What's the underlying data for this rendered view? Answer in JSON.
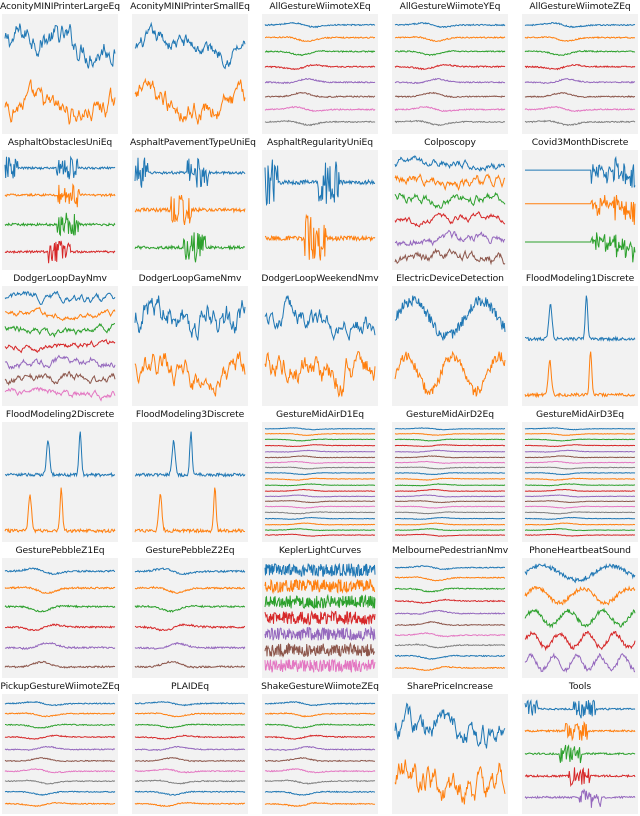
{
  "figure": {
    "background_panel_color": "#f2f2f2",
    "series_palette": [
      "#1f77b4",
      "#ff7f0e",
      "#2ca02c",
      "#d62728",
      "#9467bd",
      "#8c564b",
      "#e377c2",
      "#7f7f7f"
    ]
  },
  "chart_data": [
    {
      "type": "line",
      "title": "AconityMINIPrinterLargeEq",
      "n_series": 2,
      "style": "noisy",
      "spike": true
    },
    {
      "type": "line",
      "title": "AconityMINIPrinterSmallEq",
      "n_series": 2,
      "style": "noisy",
      "spike": true
    },
    {
      "type": "line",
      "title": "AllGestureWiimoteXEq",
      "n_series": 8,
      "style": "flat"
    },
    {
      "type": "line",
      "title": "AllGestureWiimoteYEq",
      "n_series": 8,
      "style": "flat"
    },
    {
      "type": "line",
      "title": "AllGestureWiimoteZEq",
      "n_series": 8,
      "style": "flat"
    },
    {
      "type": "line",
      "title": "AsphaltObstaclesUniEq",
      "n_series": 4,
      "style": "burst"
    },
    {
      "type": "line",
      "title": "AsphaltPavementTypeUniEq",
      "n_series": 3,
      "style": "burst"
    },
    {
      "type": "line",
      "title": "AsphaltRegularityUniEq",
      "n_series": 2,
      "style": "burst"
    },
    {
      "type": "line",
      "title": "Colposcopy",
      "n_series": 6,
      "style": "noisy"
    },
    {
      "type": "line",
      "title": "Covid3MonthDiscrete",
      "n_series": 3,
      "style": "trend"
    },
    {
      "type": "line",
      "title": "DodgerLoopDayNmv",
      "n_series": 7,
      "style": "noisy"
    },
    {
      "type": "line",
      "title": "DodgerLoopGameNmv",
      "n_series": 2,
      "style": "noisy"
    },
    {
      "type": "line",
      "title": "DodgerLoopWeekendNmv",
      "n_series": 2,
      "style": "noisy"
    },
    {
      "type": "line",
      "title": "ElectricDeviceDetection",
      "n_series": 2,
      "style": "wave"
    },
    {
      "type": "line",
      "title": "FloodModeling1Discrete",
      "n_series": 2,
      "style": "peaks"
    },
    {
      "type": "line",
      "title": "FloodModeling2Discrete",
      "n_series": 2,
      "style": "peaks"
    },
    {
      "type": "line",
      "title": "FloodModeling3Discrete",
      "n_series": 2,
      "style": "peaks"
    },
    {
      "type": "line",
      "title": "GestureMidAirD1Eq",
      "n_series": 20,
      "style": "flat"
    },
    {
      "type": "line",
      "title": "GestureMidAirD2Eq",
      "n_series": 20,
      "style": "flat"
    },
    {
      "type": "line",
      "title": "GestureMidAirD3Eq",
      "n_series": 20,
      "style": "flat"
    },
    {
      "type": "line",
      "title": "GesturePebbleZ1Eq",
      "n_series": 6,
      "style": "flat"
    },
    {
      "type": "line",
      "title": "GesturePebbleZ2Eq",
      "n_series": 6,
      "style": "flat"
    },
    {
      "type": "line",
      "title": "KeplerLightCurves",
      "n_series": 7,
      "style": "dense"
    },
    {
      "type": "line",
      "title": "MelbournePedestrianNmv",
      "n_series": 10,
      "style": "flat"
    },
    {
      "type": "line",
      "title": "PhoneHeartbeatSound",
      "n_series": 5,
      "style": "wave"
    },
    {
      "type": "line",
      "title": "PickupGestureWiimoteZEq",
      "n_series": 10,
      "style": "flat"
    },
    {
      "type": "line",
      "title": "PLAIDEq",
      "n_series": 10,
      "style": "flat"
    },
    {
      "type": "line",
      "title": "ShakeGestureWiimoteZEq",
      "n_series": 10,
      "style": "flat"
    },
    {
      "type": "line",
      "title": "SharePriceIncrease",
      "n_series": 2,
      "style": "noisy"
    },
    {
      "type": "line",
      "title": "Tools",
      "n_series": 5,
      "style": "burst"
    }
  ]
}
